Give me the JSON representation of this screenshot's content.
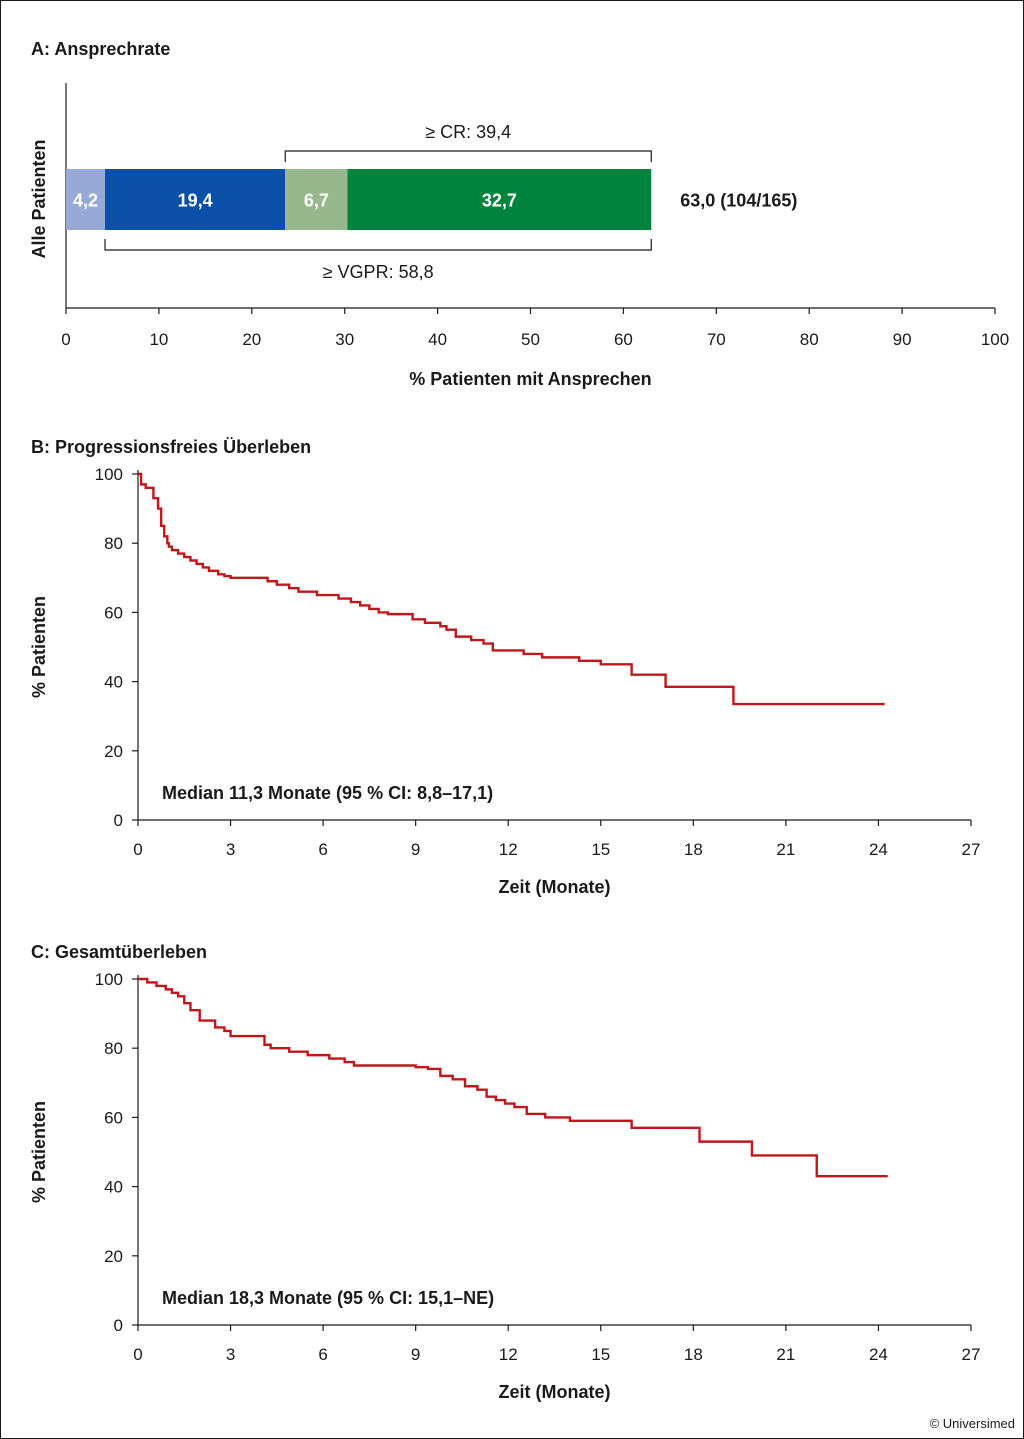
{
  "copyright": "© Universimed",
  "chart_data": [
    {
      "id": "A",
      "type": "bar",
      "orientation": "horizontal",
      "stacked": true,
      "title": "A: Ansprechrate",
      "category": "Alle Patienten",
      "xlabel": "% Patienten mit Ansprechen",
      "xlim": [
        0,
        100
      ],
      "xticks": [
        0,
        10,
        20,
        30,
        40,
        50,
        60,
        70,
        80,
        90,
        100
      ],
      "segments": [
        {
          "value": 4.2,
          "label": "4,2",
          "color": "#97a9d6"
        },
        {
          "value": 19.4,
          "label": "19,4",
          "color": "#0a4fa8"
        },
        {
          "value": 6.7,
          "label": "6,7",
          "color": "#97b78d"
        },
        {
          "value": 32.7,
          "label": "32,7",
          "color": "#00843d"
        }
      ],
      "total_label": "63,0 (104/165)",
      "brackets": [
        {
          "label": "≥ CR: 39,4",
          "from": 23.6,
          "to": 63.0,
          "position": "above"
        },
        {
          "label": "≥ VGPR: 58,8",
          "from": 4.2,
          "to": 63.0,
          "position": "below"
        }
      ]
    },
    {
      "id": "B",
      "type": "line",
      "style": "step",
      "title": "B: Progressionsfreies Überleben",
      "xlabel": "Zeit (Monate)",
      "ylabel": "% Patienten",
      "xlim": [
        0,
        27
      ],
      "ylim": [
        0,
        100
      ],
      "xticks": [
        0,
        3,
        6,
        9,
        12,
        15,
        18,
        21,
        24,
        27
      ],
      "yticks": [
        0,
        20,
        40,
        60,
        80,
        100
      ],
      "color": "#c0171c",
      "annotation": "Median 11,3 Monate (95 % CI: 8,8–17,1)",
      "x": [
        0,
        0.1,
        0.25,
        0.5,
        0.65,
        0.75,
        0.85,
        0.95,
        1.0,
        1.1,
        1.3,
        1.5,
        1.7,
        1.9,
        2.1,
        2.3,
        2.6,
        2.8,
        3.0,
        3.3,
        4.2,
        4.5,
        4.9,
        5.2,
        5.8,
        6.5,
        6.9,
        7.2,
        7.5,
        7.8,
        8.1,
        8.9,
        9.3,
        9.8,
        10.0,
        10.3,
        10.8,
        11.2,
        11.5,
        12.5,
        13.1,
        14.3,
        15.0,
        16.0,
        17.1,
        19.3,
        20.0,
        24.2
      ],
      "y": [
        100,
        97,
        96,
        93,
        90,
        85,
        82,
        80,
        79,
        78,
        77,
        76,
        75,
        74,
        73,
        72,
        71,
        70.5,
        70,
        70,
        69,
        68,
        67,
        66,
        65,
        64,
        63,
        62,
        61,
        60,
        59.5,
        58,
        57,
        56,
        55,
        53,
        52,
        51,
        49,
        48,
        47,
        46,
        45,
        42,
        38.5,
        33.5,
        33.5,
        33.5
      ]
    },
    {
      "id": "C",
      "type": "line",
      "style": "step",
      "title": "C: Gesamtüberleben",
      "xlabel": "Zeit (Monate)",
      "ylabel": "% Patienten",
      "xlim": [
        0,
        27
      ],
      "ylim": [
        0,
        100
      ],
      "xticks": [
        0,
        3,
        6,
        9,
        12,
        15,
        18,
        21,
        24,
        27
      ],
      "yticks": [
        0,
        20,
        40,
        60,
        80,
        100
      ],
      "color": "#c0171c",
      "annotation": "Median 18,3 Monate (95 % CI: 15,1–NE)",
      "x": [
        0,
        0.3,
        0.6,
        0.9,
        1.1,
        1.3,
        1.5,
        1.7,
        2.0,
        2.5,
        2.8,
        3.0,
        4.1,
        4.3,
        4.9,
        5.5,
        6.2,
        6.7,
        7.0,
        7.5,
        8.5,
        9.0,
        9.4,
        9.8,
        10.2,
        10.6,
        11.0,
        11.3,
        11.6,
        11.9,
        12.2,
        12.6,
        13.2,
        14.0,
        15.0,
        16.0,
        18.2,
        19.9,
        22.0,
        24.3
      ],
      "y": [
        100,
        99,
        98,
        97,
        96,
        95,
        93,
        91,
        88,
        86,
        85,
        83.5,
        81,
        80,
        79,
        78,
        77,
        76,
        75,
        75,
        75,
        74.5,
        74,
        72,
        71,
        69,
        68,
        66,
        65,
        64,
        63,
        61,
        60,
        59,
        59,
        57,
        53,
        49,
        43,
        43
      ]
    }
  ]
}
